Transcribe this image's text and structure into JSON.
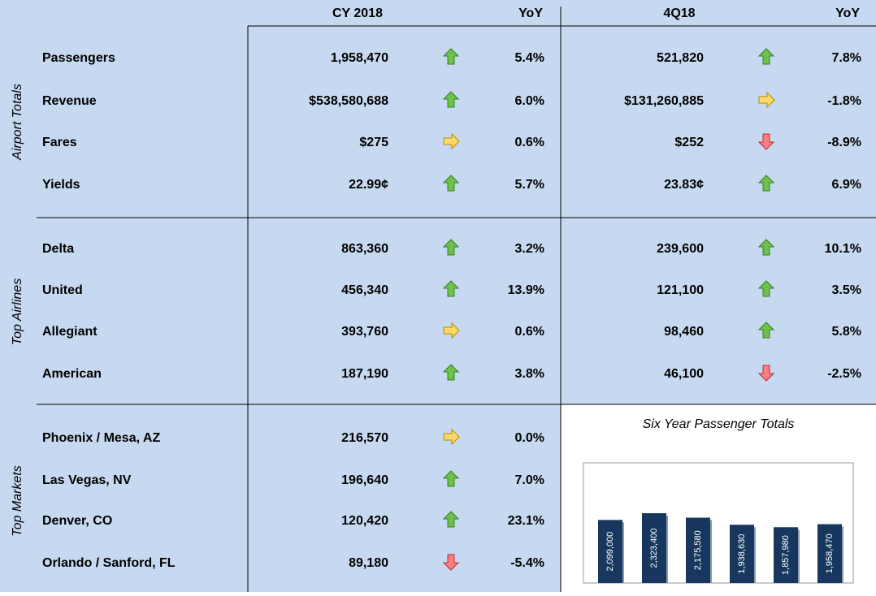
{
  "header": {
    "cy_label": "CY 2018",
    "cy_yoy_label": "YoY",
    "q_label": "4Q18",
    "q_yoy_label": "YoY"
  },
  "sections": [
    {
      "label": "Airport Totals",
      "rows": [
        {
          "name": "Passengers",
          "cy": "1,958,470",
          "cy_arrow": "up",
          "cy_yoy": "5.4%",
          "q": "521,820",
          "q_arrow": "up",
          "q_yoy": "7.8%"
        },
        {
          "name": "Revenue",
          "cy": "$538,580,688",
          "cy_arrow": "up",
          "cy_yoy": "6.0%",
          "q": "$131,260,885",
          "q_arrow": "right",
          "q_yoy": "-1.8%"
        },
        {
          "name": "Fares",
          "cy": "$275",
          "cy_arrow": "right",
          "cy_yoy": "0.6%",
          "q": "$252",
          "q_arrow": "down",
          "q_yoy": "-8.9%"
        },
        {
          "name": "Yields",
          "cy": "22.99¢",
          "cy_arrow": "up",
          "cy_yoy": "5.7%",
          "q": "23.83¢",
          "q_arrow": "up",
          "q_yoy": "6.9%"
        }
      ]
    },
    {
      "label": "Top Airlines",
      "rows": [
        {
          "name": "Delta",
          "cy": "863,360",
          "cy_arrow": "up",
          "cy_yoy": "3.2%",
          "q": "239,600",
          "q_arrow": "up",
          "q_yoy": "10.1%"
        },
        {
          "name": "United",
          "cy": "456,340",
          "cy_arrow": "up",
          "cy_yoy": "13.9%",
          "q": "121,100",
          "q_arrow": "up",
          "q_yoy": "3.5%"
        },
        {
          "name": "Allegiant",
          "cy": "393,760",
          "cy_arrow": "right",
          "cy_yoy": "0.6%",
          "q": "98,460",
          "q_arrow": "up",
          "q_yoy": "5.8%"
        },
        {
          "name": "American",
          "cy": "187,190",
          "cy_arrow": "up",
          "cy_yoy": "3.8%",
          "q": "46,100",
          "q_arrow": "down",
          "q_yoy": "-2.5%"
        }
      ]
    },
    {
      "label": "Top Markets",
      "rows": [
        {
          "name": "Phoenix / Mesa, AZ",
          "cy": "216,570",
          "cy_arrow": "right",
          "cy_yoy": "0.0%"
        },
        {
          "name": "Las Vegas, NV",
          "cy": "196,640",
          "cy_arrow": "up",
          "cy_yoy": "7.0%"
        },
        {
          "name": "Denver, CO",
          "cy": "120,420",
          "cy_arrow": "up",
          "cy_yoy": "23.1%"
        },
        {
          "name": "Orlando / Sanford, FL",
          "cy": "89,180",
          "cy_arrow": "down",
          "cy_yoy": "-5.4%"
        }
      ]
    }
  ],
  "chart_data": {
    "type": "bar",
    "title": "Six Year Passenger Totals",
    "color": "#17375e",
    "values": [
      2099000,
      2323400,
      2175580,
      1938630,
      1857980,
      1958470
    ],
    "value_labels": [
      "2,099,000",
      "2,323,400",
      "2,175,580",
      "1,938,630",
      "1,857,980",
      "1,958,470"
    ],
    "ylim": [
      0,
      4000000
    ]
  }
}
